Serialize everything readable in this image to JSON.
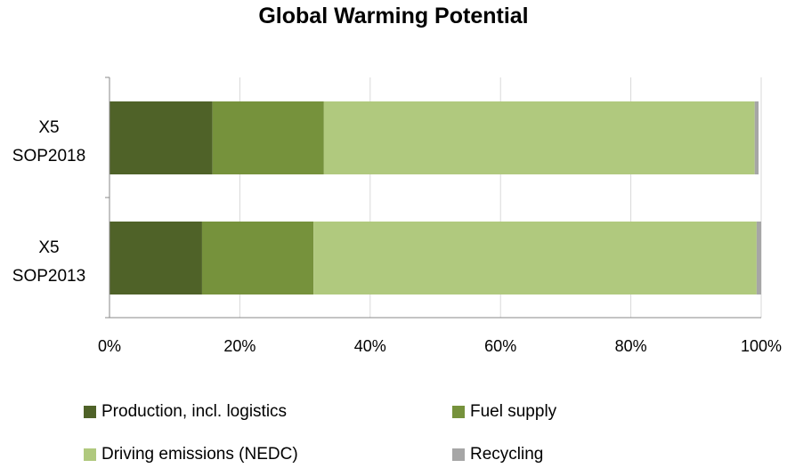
{
  "chart_data": {
    "type": "bar",
    "orientation": "horizontal",
    "stacked": "percent",
    "title": "Global Warming Potential",
    "categories": [
      "X5 SOP2018",
      "X5 SOP2013"
    ],
    "category_lines": [
      [
        "X5",
        "SOP2018"
      ],
      [
        "X5",
        "SOP2013"
      ]
    ],
    "series": [
      {
        "name": "Production, incl. logistics",
        "color": "#4f6228",
        "values": [
          15.8,
          14.2
        ]
      },
      {
        "name": "Fuel supply",
        "color": "#76923c",
        "values": [
          17.1,
          17.1
        ]
      },
      {
        "name": "Driving emissions (NEDC)",
        "color": "#b0c97e",
        "values": [
          66.1,
          68.0
        ]
      },
      {
        "name": "Recycling",
        "color": "#a6a6a6",
        "values": [
          0.6,
          0.7
        ]
      }
    ],
    "xlim": [
      0,
      100
    ],
    "x_ticks": [
      "0%",
      "20%",
      "40%",
      "60%",
      "80%",
      "100%"
    ],
    "grid": true,
    "legend_position": "bottom"
  }
}
